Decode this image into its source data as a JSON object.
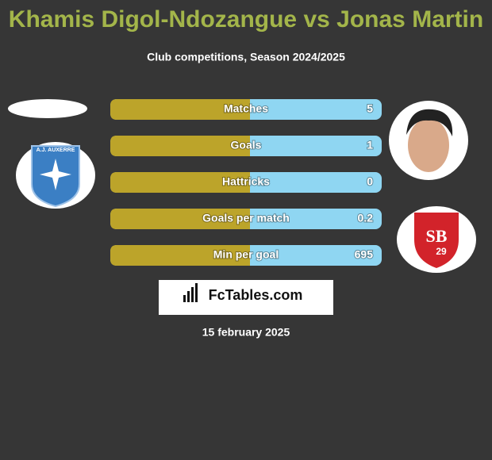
{
  "header": {
    "title": "Khamis Digol-Ndozangue vs Jonas Martin",
    "subtitle": "Club competitions, Season 2024/2025"
  },
  "rows": [
    {
      "label": "Matches",
      "value": 5
    },
    {
      "label": "Goals",
      "value": 1
    },
    {
      "label": "Hattricks",
      "value": 0
    },
    {
      "label": "Goals per match",
      "value": 0.2
    },
    {
      "label": "Min per goal",
      "value": 695
    }
  ],
  "left_badge": {
    "text": "A.J. AUXERRE"
  },
  "right_badge": {
    "letters": "SB",
    "number": "29"
  },
  "brand": "FcTables.com",
  "date": "15 february 2025"
}
